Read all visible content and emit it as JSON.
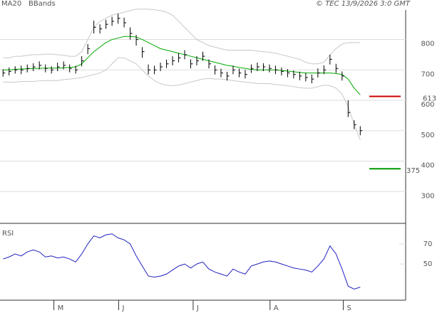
{
  "chart_data": {
    "type": "ohlc",
    "source": "© TEC 13/9/2026 3:0 GMT",
    "legend": [
      "MA20",
      "BBands"
    ],
    "ylim": [
      200,
      930
    ],
    "yticks": [
      300,
      400,
      500,
      600,
      700,
      800
    ],
    "xlim": [
      -0.5,
      66.5
    ],
    "xticks": [
      {
        "value": 8.4,
        "label": "M"
      },
      {
        "value": 19.1,
        "label": "J"
      },
      {
        "value": 31.4,
        "label": "J"
      },
      {
        "value": 44.1,
        "label": "A"
      },
      {
        "value": 56.2,
        "label": "S"
      }
    ],
    "close": [
      690,
      695,
      700,
      700,
      705,
      710,
      715,
      705,
      700,
      710,
      715,
      705,
      700,
      730,
      770,
      840,
      835,
      850,
      860,
      870,
      855,
      820,
      800,
      760,
      700,
      700,
      710,
      720,
      730,
      740,
      750,
      720,
      730,
      745,
      720,
      700,
      690,
      680,
      700,
      690,
      685,
      705,
      710,
      710,
      705,
      700,
      695,
      690,
      685,
      680,
      675,
      670,
      690,
      700,
      735,
      705,
      680,
      560,
      520,
      500
    ],
    "high": [
      702,
      708,
      712,
      714,
      718,
      722,
      728,
      718,
      712,
      724,
      728,
      718,
      714,
      745,
      785,
      862,
      850,
      865,
      875,
      885,
      872,
      840,
      815,
      775,
      718,
      714,
      724,
      734,
      745,
      755,
      765,
      735,
      745,
      760,
      735,
      715,
      704,
      694,
      714,
      704,
      700,
      718,
      724,
      722,
      718,
      714,
      708,
      703,
      698,
      694,
      690,
      685,
      705,
      715,
      750,
      720,
      695,
      600,
      535,
      515
    ],
    "low": [
      678,
      682,
      688,
      686,
      692,
      696,
      702,
      692,
      688,
      696,
      702,
      692,
      688,
      712,
      752,
      820,
      820,
      835,
      845,
      852,
      840,
      800,
      780,
      740,
      685,
      686,
      696,
      706,
      715,
      725,
      735,
      705,
      715,
      730,
      705,
      685,
      676,
      665,
      686,
      676,
      672,
      690,
      696,
      696,
      692,
      686,
      682,
      676,
      672,
      666,
      662,
      656,
      675,
      686,
      718,
      690,
      665,
      545,
      505,
      485
    ],
    "series": [
      {
        "name": "MA20",
        "color": "#00aa00",
        "values": [
          700,
          700,
          702,
          703,
          704,
          705,
          705,
          706,
          706,
          706,
          707,
          708,
          710,
          720,
          740,
          760,
          775,
          790,
          800,
          805,
          810,
          810,
          808,
          800,
          790,
          780,
          770,
          765,
          760,
          755,
          750,
          745,
          740,
          735,
          730,
          725,
          720,
          715,
          712,
          708,
          705,
          702,
          700,
          700,
          700,
          700,
          698,
          696,
          694,
          692,
          690,
          690,
          690,
          690,
          690,
          688,
          685,
          670,
          640,
          618
        ]
      },
      {
        "name": "BBands",
        "color": "#c8c8c8",
        "upper": [
          740,
          740,
          745,
          745,
          748,
          750,
          750,
          752,
          752,
          750,
          748,
          745,
          745,
          760,
          800,
          840,
          860,
          870,
          880,
          885,
          890,
          895,
          900,
          900,
          900,
          898,
          895,
          890,
          880,
          860,
          840,
          820,
          800,
          790,
          780,
          775,
          770,
          765,
          765,
          765,
          765,
          765,
          762,
          760,
          758,
          755,
          750,
          745,
          740,
          735,
          725,
          720,
          720,
          725,
          750,
          770,
          785,
          790,
          790,
          790
        ],
        "lower": [
          660,
          660,
          660,
          662,
          662,
          662,
          664,
          665,
          665,
          665,
          668,
          670,
          672,
          675,
          680,
          685,
          690,
          700,
          720,
          740,
          740,
          730,
          720,
          700,
          680,
          665,
          655,
          650,
          648,
          650,
          655,
          660,
          665,
          670,
          672,
          670,
          670,
          668,
          665,
          662,
          660,
          658,
          655,
          655,
          655,
          652,
          650,
          648,
          645,
          642,
          640,
          640,
          645,
          650,
          648,
          640,
          620,
          580,
          520,
          470
        ]
      }
    ],
    "levels": [
      {
        "value": 613,
        "color": "#cc0000"
      },
      {
        "value": 375,
        "color": "#009900"
      }
    ],
    "rsi": {
      "label": "RSI",
      "color": "#2020c0",
      "ylim": [
        14,
        89
      ],
      "yticks": [
        50,
        70
      ],
      "values": [
        55,
        57,
        60,
        58,
        62,
        64,
        62,
        57,
        58,
        56,
        57,
        55,
        52,
        60,
        70,
        78,
        76,
        79,
        80,
        76,
        74,
        70,
        58,
        48,
        38,
        37,
        38,
        40,
        44,
        48,
        50,
        46,
        50,
        52,
        45,
        42,
        40,
        38,
        45,
        42,
        40,
        48,
        50,
        52,
        53,
        52,
        50,
        48,
        46,
        45,
        44,
        42,
        48,
        55,
        68,
        60,
        45,
        28,
        25,
        27
      ]
    }
  }
}
